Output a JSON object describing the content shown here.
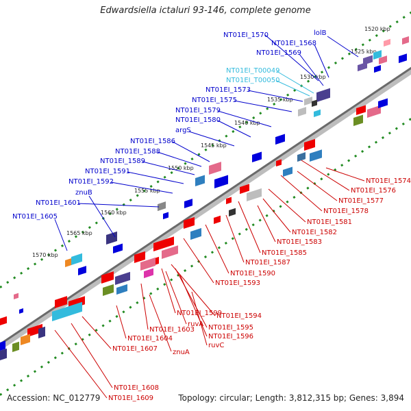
{
  "title": "Edwardsiella ictaluri 93-146, complete genome",
  "footer": {
    "accession": "Accession: NC_012779",
    "summary": "Topology: circular; Length: 3,812,315 bp; Genes: 3,894"
  },
  "colors": {
    "backbone": "#7a7a7a",
    "forward_label": "#0000cc",
    "reverse_label": "#cc0000",
    "rna_label": "#33bbdd",
    "tick_dots": "#228b22"
  },
  "ticks": [
    {
      "label": "1520 kbp"
    },
    {
      "label": "1525 kbp"
    },
    {
      "label": "1530 kbp"
    },
    {
      "label": "1535 kbp"
    },
    {
      "label": "1540 kbp"
    },
    {
      "label": "1545 kbp"
    },
    {
      "label": "1550 kbp"
    },
    {
      "label": "1555 kbp"
    },
    {
      "label": "1560 kbp"
    },
    {
      "label": "1565 kbp"
    },
    {
      "label": "1570 kbp"
    }
  ],
  "forward_labels": [
    {
      "text": "NT01EI_1570",
      "kind": "cds"
    },
    {
      "text": "lolB",
      "kind": "cds"
    },
    {
      "text": "NT01EI_1568",
      "kind": "cds"
    },
    {
      "text": "NT01EI_1569",
      "kind": "cds"
    },
    {
      "text": "NT01EI_T00049",
      "kind": "rna"
    },
    {
      "text": "NT01EI_T00050",
      "kind": "rna"
    },
    {
      "text": "NT01EI_1573",
      "kind": "cds"
    },
    {
      "text": "NT01EI_1575",
      "kind": "cds"
    },
    {
      "text": "NT01EI_1579",
      "kind": "cds"
    },
    {
      "text": "NT01EI_1580",
      "kind": "cds"
    },
    {
      "text": "argS",
      "kind": "cds"
    },
    {
      "text": "NT01EI_1586",
      "kind": "cds"
    },
    {
      "text": "NT01EI_1588",
      "kind": "cds"
    },
    {
      "text": "NT01EI_1589",
      "kind": "cds"
    },
    {
      "text": "NT01EI_1591",
      "kind": "cds"
    },
    {
      "text": "NT01EI_1592",
      "kind": "cds"
    },
    {
      "text": "znuB",
      "kind": "cds"
    },
    {
      "text": "NT01EI_1601",
      "kind": "cds"
    },
    {
      "text": "NT01EI_1605",
      "kind": "cds"
    }
  ],
  "reverse_labels": [
    {
      "text": "NT01EI_1574"
    },
    {
      "text": "NT01EI_1576"
    },
    {
      "text": "NT01EI_1577"
    },
    {
      "text": "NT01EI_1578"
    },
    {
      "text": "NT01EI_1581"
    },
    {
      "text": "NT01EI_1582"
    },
    {
      "text": "NT01EI_1583"
    },
    {
      "text": "NT01EI_1585"
    },
    {
      "text": "NT01EI_1587"
    },
    {
      "text": "NT01EI_1590"
    },
    {
      "text": "NT01EI_1593"
    },
    {
      "text": "NT01EI_1594"
    },
    {
      "text": "NT01EI_1599"
    },
    {
      "text": "ruvA"
    },
    {
      "text": "NT01EI_1595"
    },
    {
      "text": "NT01EI_1603"
    },
    {
      "text": "NT01EI_1596"
    },
    {
      "text": "NT01EI_1604"
    },
    {
      "text": "ruvC"
    },
    {
      "text": "znuA"
    },
    {
      "text": "NT01EI_1607"
    },
    {
      "text": "NT01EI_1608"
    },
    {
      "text": "NT01EI_1609"
    }
  ]
}
